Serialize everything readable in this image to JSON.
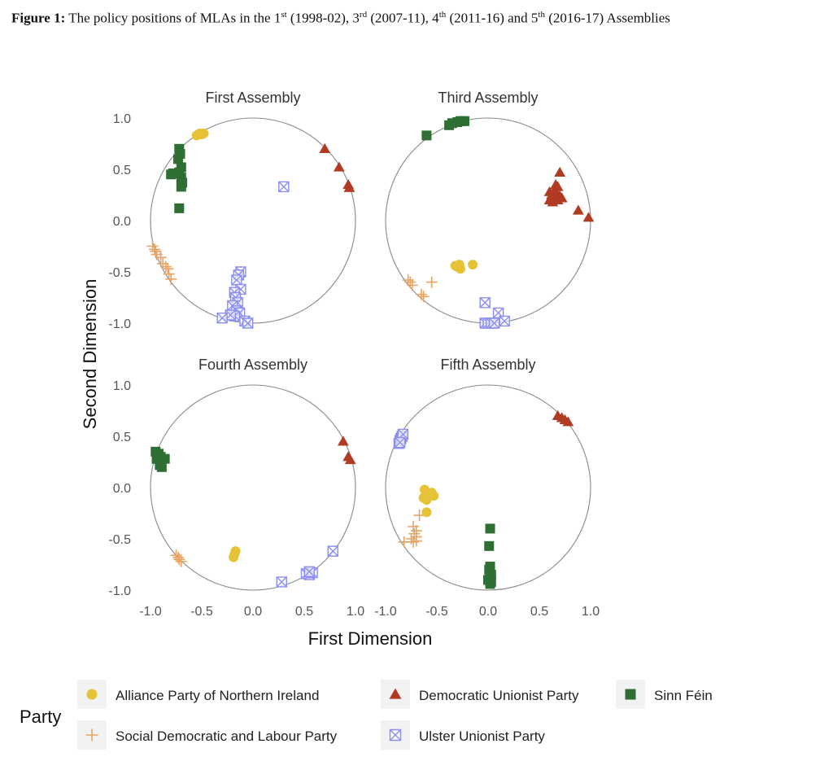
{
  "caption": {
    "label": "Figure 1:",
    "text_a": " The policy positions of MLAs in the 1",
    "sup_1": "st",
    "text_b": " (1998-02), 3",
    "sup_3": "rd",
    "text_c": " (2007-11), 4",
    "sup_4": "th",
    "text_d": " (2011-16) and 5",
    "sup_5": "th",
    "text_e": " (2016-17) Assemblies"
  },
  "chart_data": {
    "type": "scatter",
    "xlabel": "First Dimension",
    "ylabel": "Second Dimension",
    "xlim": [
      -1.0,
      1.0
    ],
    "ylim": [
      -1.0,
      1.0
    ],
    "x_ticks": [
      "-1.0",
      "-0.5",
      "0.0",
      "0.5",
      "1.0"
    ],
    "y_ticks": [
      "1.0",
      "0.5",
      "0.0",
      "-0.5",
      "-1.0"
    ],
    "grid": false,
    "unit_circle": true,
    "legend": {
      "title": "Party",
      "placement": "bottom",
      "entries": [
        {
          "label": "Alliance Party of Northern Ireland",
          "series": "alliance"
        },
        {
          "label": "Democratic Unionist Party",
          "series": "dup"
        },
        {
          "label": "Sinn Féin",
          "series": "sf"
        },
        {
          "label": "Social Democratic and Labour Party",
          "series": "sdlp"
        },
        {
          "label": "Ulster Unionist Party",
          "series": "uup"
        }
      ]
    },
    "series_styles": {
      "alliance": {
        "color": "#e6c237",
        "marker": "circle"
      },
      "dup": {
        "color": "#b03a22",
        "marker": "triangle"
      },
      "sf": {
        "color": "#2f6f34",
        "marker": "square"
      },
      "sdlp": {
        "color": "#e8a464",
        "marker": "plus"
      },
      "uup": {
        "color": "#8b8ef0",
        "marker": "boxx"
      }
    },
    "panels": [
      {
        "title": "First Assembly",
        "series": {
          "alliance": [
            [
              -0.55,
              0.83
            ],
            [
              -0.52,
              0.85
            ],
            [
              -0.5,
              0.84
            ],
            [
              -0.48,
              0.85
            ]
          ],
          "dup": [
            [
              0.7,
              0.7
            ],
            [
              0.84,
              0.52
            ],
            [
              0.93,
              0.35
            ],
            [
              0.94,
              0.32
            ]
          ],
          "sf": [
            [
              -0.72,
              0.7
            ],
            [
              -0.71,
              0.65
            ],
            [
              -0.73,
              0.6
            ],
            [
              -0.7,
              0.52
            ],
            [
              -0.72,
              0.47
            ],
            [
              -0.78,
              0.46
            ],
            [
              -0.8,
              0.45
            ],
            [
              -0.7,
              0.42
            ],
            [
              -0.69,
              0.37
            ],
            [
              -0.7,
              0.33
            ],
            [
              -0.72,
              0.12
            ]
          ],
          "sdlp": [
            [
              -0.98,
              -0.25
            ],
            [
              -0.96,
              -0.28
            ],
            [
              -0.95,
              -0.3
            ],
            [
              -0.94,
              -0.33
            ],
            [
              -0.9,
              -0.36
            ],
            [
              -0.88,
              -0.42
            ],
            [
              -0.85,
              -0.45
            ],
            [
              -0.83,
              -0.47
            ],
            [
              -0.82,
              -0.52
            ],
            [
              -0.8,
              -0.57
            ]
          ],
          "uup": [
            [
              0.3,
              0.33
            ],
            [
              -0.12,
              -0.5
            ],
            [
              -0.14,
              -0.53
            ],
            [
              -0.16,
              -0.58
            ],
            [
              -0.12,
              -0.67
            ],
            [
              -0.18,
              -0.7
            ],
            [
              -0.17,
              -0.75
            ],
            [
              -0.15,
              -0.8
            ],
            [
              -0.2,
              -0.83
            ],
            [
              -0.16,
              -0.88
            ],
            [
              -0.13,
              -0.9
            ],
            [
              -0.18,
              -0.93
            ],
            [
              -0.22,
              -0.92
            ],
            [
              -0.3,
              -0.95
            ],
            [
              -0.08,
              -0.98
            ],
            [
              -0.05,
              -1.0
            ]
          ]
        }
      },
      {
        "title": "Third Assembly",
        "series": {
          "alliance": [
            [
              -0.32,
              -0.44
            ],
            [
              -0.28,
              -0.43
            ],
            [
              -0.27,
              -0.47
            ],
            [
              -0.3,
              -0.45
            ],
            [
              -0.15,
              -0.43
            ]
          ],
          "dup": [
            [
              0.6,
              0.28
            ],
            [
              0.62,
              0.25
            ],
            [
              0.65,
              0.3
            ],
            [
              0.68,
              0.33
            ],
            [
              0.7,
              0.47
            ],
            [
              0.6,
              0.2
            ],
            [
              0.63,
              0.18
            ],
            [
              0.68,
              0.2
            ],
            [
              0.72,
              0.22
            ],
            [
              0.66,
              0.35
            ],
            [
              0.64,
              0.22
            ],
            [
              0.67,
              0.25
            ],
            [
              0.7,
              0.24
            ],
            [
              0.88,
              0.1
            ],
            [
              0.98,
              0.03
            ]
          ],
          "sf": [
            [
              -0.6,
              0.83
            ],
            [
              -0.38,
              0.93
            ],
            [
              -0.35,
              0.95
            ],
            [
              -0.3,
              0.96
            ],
            [
              -0.27,
              0.97
            ],
            [
              -0.25,
              0.97
            ],
            [
              -0.23,
              0.97
            ]
          ],
          "sdlp": [
            [
              -0.78,
              -0.58
            ],
            [
              -0.76,
              -0.6
            ],
            [
              -0.74,
              -0.63
            ],
            [
              -0.65,
              -0.72
            ],
            [
              -0.63,
              -0.74
            ],
            [
              -0.55,
              -0.6
            ]
          ],
          "uup": [
            [
              -0.03,
              -0.8
            ],
            [
              0.1,
              -0.9
            ],
            [
              0.16,
              -0.98
            ],
            [
              -0.03,
              -1.0
            ],
            [
              0.0,
              -1.0
            ],
            [
              0.03,
              -1.0
            ],
            [
              0.06,
              -1.0
            ]
          ]
        }
      },
      {
        "title": "Fourth Assembly",
        "series": {
          "alliance": [
            [
              -0.17,
              -0.62
            ],
            [
              -0.18,
              -0.65
            ],
            [
              -0.19,
              -0.68
            ]
          ],
          "dup": [
            [
              0.88,
              0.45
            ],
            [
              0.93,
              0.3
            ],
            [
              0.95,
              0.27
            ]
          ],
          "sf": [
            [
              -0.95,
              0.35
            ],
            [
              -0.92,
              0.33
            ],
            [
              -0.9,
              0.3
            ],
            [
              -0.86,
              0.28
            ],
            [
              -0.94,
              0.28
            ],
            [
              -0.91,
              0.22
            ],
            [
              -0.89,
              0.2
            ],
            [
              -0.93,
              0.32
            ]
          ],
          "sdlp": [
            [
              -0.75,
              -0.66
            ],
            [
              -0.73,
              -0.68
            ],
            [
              -0.72,
              -0.7
            ],
            [
              -0.7,
              -0.72
            ]
          ],
          "uup": [
            [
              0.28,
              -0.92
            ],
            [
              0.52,
              -0.84
            ],
            [
              0.55,
              -0.85
            ],
            [
              0.58,
              -0.83
            ],
            [
              0.55,
              -0.82
            ],
            [
              0.78,
              -0.62
            ]
          ]
        }
      },
      {
        "title": "Fifth Assembly",
        "series": {
          "alliance": [
            [
              -0.62,
              -0.02
            ],
            [
              -0.6,
              -0.08
            ],
            [
              -0.63,
              -0.1
            ],
            [
              -0.6,
              -0.12
            ],
            [
              -0.55,
              -0.05
            ],
            [
              -0.53,
              -0.08
            ],
            [
              -0.6,
              -0.24
            ]
          ],
          "dup": [
            [
              0.68,
              0.7
            ],
            [
              0.72,
              0.68
            ],
            [
              0.75,
              0.66
            ],
            [
              0.78,
              0.64
            ]
          ],
          "sf": [
            [
              0.02,
              -0.4
            ],
            [
              0.01,
              -0.57
            ],
            [
              0.02,
              -0.77
            ],
            [
              0.01,
              -0.8
            ],
            [
              0.03,
              -0.85
            ],
            [
              0.02,
              -0.88
            ],
            [
              0.0,
              -0.9
            ],
            [
              0.03,
              -0.92
            ],
            [
              0.02,
              -0.94
            ]
          ],
          "sdlp": [
            [
              -0.67,
              -0.27
            ],
            [
              -0.73,
              -0.38
            ],
            [
              -0.7,
              -0.42
            ],
            [
              -0.72,
              -0.45
            ],
            [
              -0.7,
              -0.48
            ],
            [
              -0.75,
              -0.5
            ],
            [
              -0.82,
              -0.53
            ],
            [
              -0.73,
              -0.53
            ],
            [
              -0.7,
              -0.52
            ]
          ],
          "uup": [
            [
              -0.87,
              0.43
            ],
            [
              -0.86,
              0.46
            ],
            [
              -0.85,
              0.48
            ],
            [
              -0.84,
              0.5
            ],
            [
              -0.83,
              0.52
            ],
            [
              -0.86,
              0.44
            ]
          ]
        }
      }
    ]
  }
}
